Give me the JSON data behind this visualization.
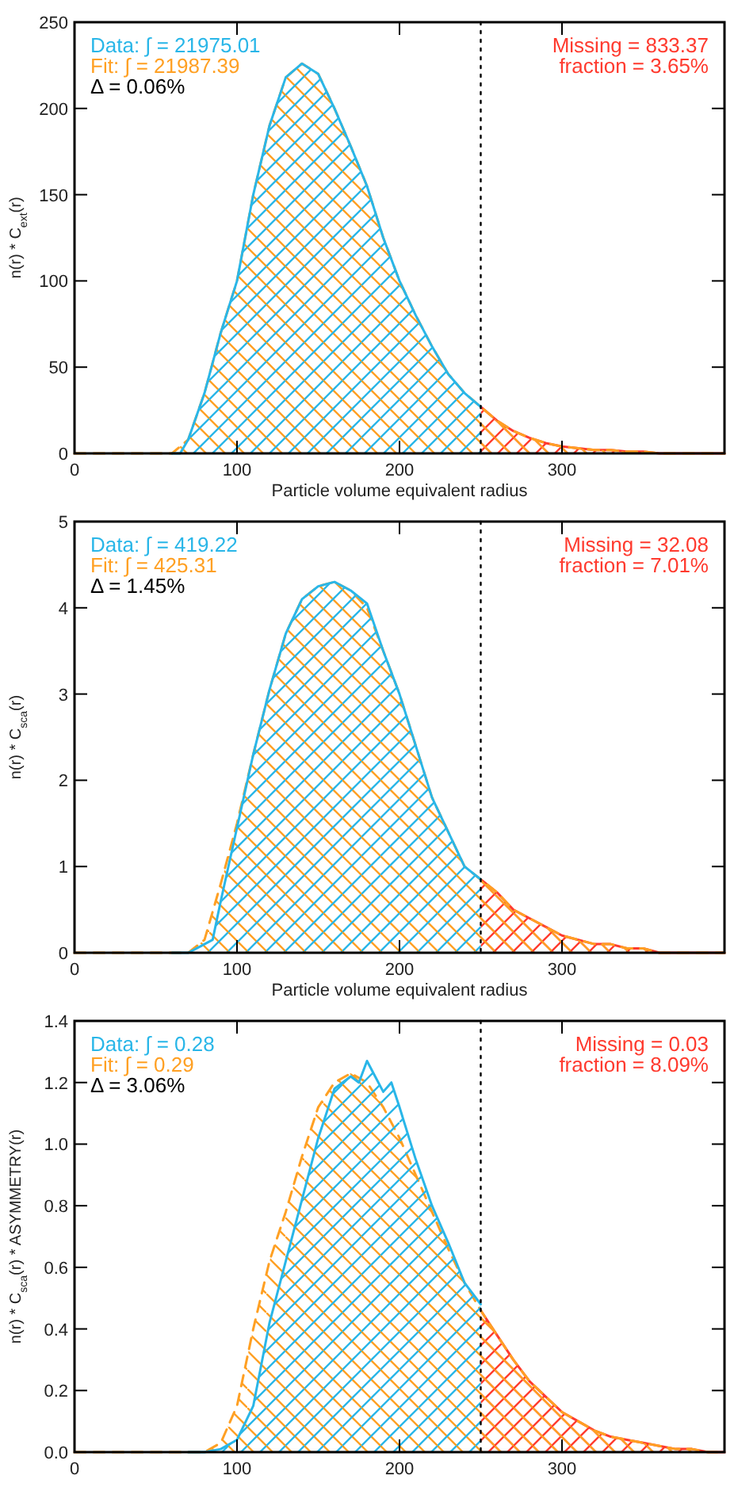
{
  "chart_data": [
    {
      "type": "area",
      "xlabel": "Particle volume equivalent radius",
      "ylabel": "n(r) * C$_{ext}$(r)",
      "xlim": [
        0,
        400
      ],
      "ylim": [
        0,
        250
      ],
      "xticks": [
        0,
        100,
        200,
        300
      ],
      "yticks": [
        0,
        50,
        100,
        150,
        200,
        250
      ],
      "series": [
        {
          "color": "#ff3a2e",
          "x": [
            250,
            260,
            270,
            280,
            290,
            300,
            310,
            320,
            330,
            340,
            350,
            360,
            370,
            380,
            390,
            400
          ],
          "values": [
            27,
            19,
            13,
            9,
            6,
            4,
            3,
            2,
            2,
            1,
            1,
            0,
            0,
            0,
            0,
            0
          ]
        },
        {
          "color": "#ffa023",
          "line_style": "dashed",
          "x": [
            0,
            10,
            20,
            30,
            40,
            50,
            60,
            70,
            80,
            90,
            100,
            110,
            120,
            130,
            140,
            150,
            160,
            170,
            180,
            190,
            200,
            210,
            220,
            230,
            240,
            250,
            260,
            270,
            280,
            290,
            300,
            310,
            320,
            330,
            340,
            350,
            360,
            370,
            380,
            390,
            400
          ],
          "values": [
            0,
            0,
            0,
            0,
            0,
            0,
            0,
            8,
            35,
            70,
            100,
            150,
            190,
            218,
            226,
            220,
            200,
            178,
            155,
            125,
            100,
            80,
            62,
            46,
            35,
            27,
            19,
            13,
            9,
            6,
            4,
            3,
            2,
            2,
            1,
            1,
            0,
            0,
            0,
            0,
            0
          ]
        },
        {
          "color": "#29b6e8",
          "x": [
            60,
            65,
            70,
            80,
            90,
            100,
            110,
            120,
            130,
            140,
            150,
            160,
            170,
            180,
            190,
            200,
            210,
            220,
            230,
            240,
            250
          ],
          "values": [
            0,
            0,
            8,
            35,
            70,
            100,
            150,
            190,
            218,
            226,
            220,
            200,
            178,
            155,
            125,
            100,
            80,
            62,
            46,
            35,
            27
          ]
        }
      ],
      "ref_lines": [
        {
          "axis": "x",
          "value": 250,
          "color": "#000000",
          "line_style": "dotted"
        }
      ],
      "annotations": [
        "Data: ∫ = 21975.01",
        "Fit: ∫ = 21987.39",
        "Δ = 0.06%",
        "Missing = 833.37",
        "fraction = 3.65%"
      ]
    },
    {
      "type": "area",
      "xlabel": "Particle volume equivalent radius",
      "ylabel": "n(r) * C$_{sca}$(r)",
      "xlim": [
        0,
        400
      ],
      "ylim": [
        0,
        5
      ],
      "xticks": [
        0,
        100,
        200,
        300
      ],
      "yticks": [
        0,
        1,
        2,
        3,
        4,
        5
      ],
      "series": [
        {
          "color": "#ff3a2e",
          "x": [
            250,
            260,
            270,
            280,
            290,
            300,
            310,
            320,
            330,
            340,
            350,
            360,
            370,
            380,
            390,
            400
          ],
          "values": [
            0.85,
            0.7,
            0.5,
            0.4,
            0.3,
            0.2,
            0.15,
            0.1,
            0.1,
            0.05,
            0.05,
            0,
            0,
            0,
            0,
            0
          ]
        },
        {
          "color": "#ffa023",
          "line_style": "dashed",
          "x": [
            0,
            10,
            20,
            30,
            40,
            50,
            60,
            70,
            80,
            90,
            100,
            110,
            120,
            130,
            140,
            150,
            160,
            170,
            180,
            190,
            200,
            210,
            220,
            230,
            240,
            250,
            260,
            270,
            280,
            290,
            300,
            310,
            320,
            330,
            340,
            350,
            360,
            370,
            380,
            390,
            400
          ],
          "values": [
            0,
            0,
            0,
            0,
            0,
            0,
            0,
            0,
            0.15,
            0.8,
            1.5,
            2.3,
            3.05,
            3.7,
            4.1,
            4.25,
            4.3,
            4.2,
            4.0,
            3.5,
            3.0,
            2.4,
            1.8,
            1.4,
            1.0,
            0.85,
            0.7,
            0.5,
            0.4,
            0.3,
            0.2,
            0.15,
            0.1,
            0.1,
            0.05,
            0.05,
            0,
            0,
            0,
            0,
            0
          ]
        },
        {
          "color": "#29b6e8",
          "x": [
            60,
            70,
            80,
            85,
            90,
            100,
            110,
            120,
            130,
            140,
            150,
            160,
            170,
            180,
            190,
            200,
            210,
            220,
            230,
            240,
            250
          ],
          "values": [
            0,
            0,
            0.1,
            0.15,
            0.6,
            1.45,
            2.3,
            3.05,
            3.7,
            4.1,
            4.25,
            4.3,
            4.2,
            4.05,
            3.5,
            3.0,
            2.4,
            1.8,
            1.4,
            1.0,
            0.85
          ]
        }
      ],
      "ref_lines": [
        {
          "axis": "x",
          "value": 250,
          "color": "#000000",
          "line_style": "dotted"
        }
      ],
      "annotations": [
        "Data: ∫ = 419.22",
        "Fit: ∫ = 425.31",
        "Δ = 1.45%",
        "Missing = 32.08",
        "fraction = 7.01%"
      ]
    },
    {
      "type": "area",
      "ylabel": "n(r) * C$_{sca}$(r) * ASYMMETRY(r)",
      "xlim": [
        0,
        400
      ],
      "ylim": [
        0,
        1.4
      ],
      "xticks": [
        0,
        100,
        200,
        300
      ],
      "yticks": [
        {
          "value": 0,
          "label": "0.0"
        },
        0.2,
        0.4,
        0.6,
        0.8,
        {
          "value": 1,
          "label": "1.0"
        },
        1.2,
        1.4
      ],
      "series": [
        {
          "color": "#ff3a2e",
          "x": [
            250,
            260,
            270,
            280,
            290,
            300,
            310,
            320,
            330,
            340,
            350,
            360,
            370,
            380,
            390,
            400
          ],
          "values": [
            0.46,
            0.38,
            0.3,
            0.23,
            0.18,
            0.13,
            0.1,
            0.07,
            0.05,
            0.04,
            0.03,
            0.02,
            0.01,
            0.01,
            0,
            0
          ]
        },
        {
          "color": "#ffa023",
          "line_style": "dashed",
          "x": [
            0,
            10,
            20,
            30,
            40,
            50,
            60,
            70,
            80,
            90,
            100,
            110,
            120,
            130,
            140,
            150,
            160,
            170,
            180,
            190,
            200,
            210,
            220,
            230,
            240,
            250,
            260,
            270,
            280,
            290,
            300,
            310,
            320,
            330,
            340,
            350,
            360,
            370,
            380,
            390,
            400
          ],
          "values": [
            0,
            0,
            0,
            0,
            0,
            0,
            0,
            0,
            0,
            0.03,
            0.15,
            0.4,
            0.62,
            0.78,
            0.96,
            1.12,
            1.2,
            1.23,
            1.2,
            1.12,
            1.02,
            0.9,
            0.78,
            0.66,
            0.55,
            0.46,
            0.38,
            0.3,
            0.23,
            0.18,
            0.13,
            0.1,
            0.07,
            0.05,
            0.04,
            0.03,
            0.02,
            0.01,
            0.01,
            0,
            0
          ]
        },
        {
          "color": "#29b6e8",
          "x": [
            70,
            80,
            90,
            100,
            110,
            120,
            130,
            140,
            150,
            160,
            170,
            175,
            180,
            185,
            190,
            195,
            200,
            210,
            220,
            230,
            240,
            250
          ],
          "values": [
            0,
            0,
            0.01,
            0.04,
            0.15,
            0.42,
            0.62,
            0.82,
            1.02,
            1.18,
            1.22,
            1.2,
            1.27,
            1.22,
            1.17,
            1.2,
            1.12,
            0.95,
            0.8,
            0.68,
            0.55,
            0.48
          ]
        }
      ],
      "ref_lines": [
        {
          "axis": "x",
          "value": 250,
          "color": "#000000",
          "line_style": "dotted"
        }
      ],
      "annotations": [
        "Data: ∫ = 0.28",
        "Fit: ∫ = 0.29",
        "Δ = 3.06%",
        "Missing = 0.03",
        "fraction = 8.09%"
      ]
    }
  ]
}
